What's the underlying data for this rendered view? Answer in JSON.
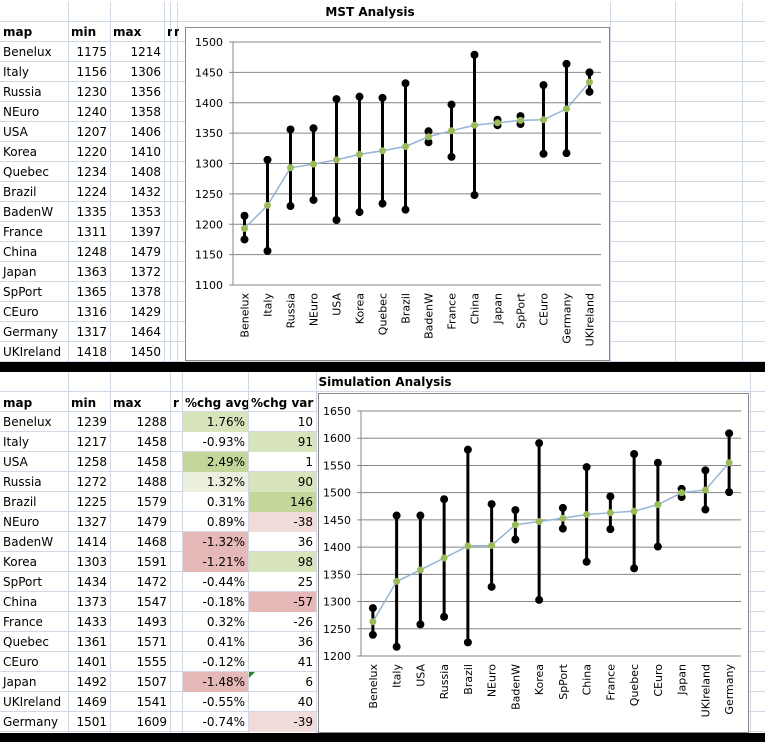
{
  "mst": {
    "title": "MST Analysis",
    "headers": [
      "map",
      "min",
      "max",
      "r",
      "m"
    ],
    "rows": [
      {
        "map": "Benelux",
        "min": 1175,
        "max": 1214,
        "avg": 1193
      },
      {
        "map": "Italy",
        "min": 1156,
        "max": 1306,
        "avg": 1231
      },
      {
        "map": "Russia",
        "min": 1230,
        "max": 1356,
        "avg": 1293
      },
      {
        "map": "NEuro",
        "min": 1240,
        "max": 1358,
        "avg": 1299
      },
      {
        "map": "USA",
        "min": 1207,
        "max": 1406,
        "avg": 1306
      },
      {
        "map": "Korea",
        "min": 1220,
        "max": 1410,
        "avg": 1315
      },
      {
        "map": "Quebec",
        "min": 1234,
        "max": 1408,
        "avg": 1321
      },
      {
        "map": "Brazil",
        "min": 1224,
        "max": 1432,
        "avg": 1328
      },
      {
        "map": "BadenW",
        "min": 1335,
        "max": 1353,
        "avg": 1344
      },
      {
        "map": "France",
        "min": 1311,
        "max": 1397,
        "avg": 1354
      },
      {
        "map": "China",
        "min": 1248,
        "max": 1479,
        "avg": 1363
      },
      {
        "map": "Japan",
        "min": 1363,
        "max": 1372,
        "avg": 1367
      },
      {
        "map": "SpPort",
        "min": 1365,
        "max": 1378,
        "avg": 1371
      },
      {
        "map": "CEuro",
        "min": 1316,
        "max": 1429,
        "avg": 1372
      },
      {
        "map": "Germany",
        "min": 1317,
        "max": 1464,
        "avg": 1390
      },
      {
        "map": "UKIreland",
        "min": 1418,
        "max": 1450,
        "avg": 1434
      }
    ]
  },
  "sim": {
    "title": "Simulation Analysis",
    "headers": [
      "map",
      "min",
      "max",
      "r",
      "%chg avg",
      "%chg var"
    ],
    "rows": [
      {
        "map": "Benelux",
        "min": 1239,
        "max": 1288,
        "chg_avg": "1.76%",
        "chg_var": "10",
        "avg_fill": "#d8e4bc",
        "var_fill": "",
        "avg": 1263
      },
      {
        "map": "Italy",
        "min": 1217,
        "max": 1458,
        "chg_avg": "-0.93%",
        "chg_var": "91",
        "avg_fill": "",
        "var_fill": "#d8e4bc",
        "avg": 1337
      },
      {
        "map": "USA",
        "min": 1258,
        "max": 1458,
        "chg_avg": "2.49%",
        "chg_var": "1",
        "avg_fill": "#c4d79b",
        "var_fill": "",
        "avg": 1358
      },
      {
        "map": "Russia",
        "min": 1272,
        "max": 1488,
        "chg_avg": "1.32%",
        "chg_var": "90",
        "avg_fill": "#ebf1de",
        "var_fill": "#d8e4bc",
        "avg": 1380
      },
      {
        "map": "Brazil",
        "min": 1225,
        "max": 1579,
        "chg_avg": "0.31%",
        "chg_var": "146",
        "avg_fill": "",
        "var_fill": "#c4d79b",
        "avg": 1402
      },
      {
        "map": "NEuro",
        "min": 1327,
        "max": 1479,
        "chg_avg": "0.89%",
        "chg_var": "-38",
        "avg_fill": "",
        "var_fill": "#f2dcdb",
        "avg": 1403
      },
      {
        "map": "BadenW",
        "min": 1414,
        "max": 1468,
        "chg_avg": "-1.32%",
        "chg_var": "36",
        "avg_fill": "#e6b8b7",
        "var_fill": "",
        "avg": 1441
      },
      {
        "map": "Korea",
        "min": 1303,
        "max": 1591,
        "chg_avg": "-1.21%",
        "chg_var": "98",
        "avg_fill": "#e6b8b7",
        "var_fill": "#d8e4bc",
        "avg": 1447
      },
      {
        "map": "SpPort",
        "min": 1434,
        "max": 1472,
        "chg_avg": "-0.44%",
        "chg_var": "25",
        "avg_fill": "",
        "var_fill": "",
        "avg": 1453
      },
      {
        "map": "China",
        "min": 1373,
        "max": 1547,
        "chg_avg": "-0.18%",
        "chg_var": "-57",
        "avg_fill": "",
        "var_fill": "#e6b8b7",
        "avg": 1460
      },
      {
        "map": "France",
        "min": 1433,
        "max": 1493,
        "chg_avg": "0.32%",
        "chg_var": "-26",
        "avg_fill": "",
        "var_fill": "",
        "avg": 1463
      },
      {
        "map": "Quebec",
        "min": 1361,
        "max": 1571,
        "chg_avg": "0.41%",
        "chg_var": "36",
        "avg_fill": "",
        "var_fill": "",
        "avg": 1466
      },
      {
        "map": "CEuro",
        "min": 1401,
        "max": 1555,
        "chg_avg": "-0.12%",
        "chg_var": "41",
        "avg_fill": "",
        "var_fill": "",
        "avg": 1478
      },
      {
        "map": "Japan",
        "min": 1492,
        "max": 1507,
        "chg_avg": "-1.48%",
        "chg_var": "6",
        "avg_fill": "#e6b8b7",
        "var_fill": "",
        "avg": 1500
      },
      {
        "map": "UKIreland",
        "min": 1469,
        "max": 1541,
        "chg_avg": "-0.55%",
        "chg_var": "40",
        "avg_fill": "",
        "var_fill": "",
        "avg": 1505
      },
      {
        "map": "Germany",
        "min": 1501,
        "max": 1609,
        "chg_avg": "-0.74%",
        "chg_var": "-39",
        "avg_fill": "",
        "var_fill": "#f2dcdb",
        "avg": 1555
      }
    ]
  },
  "chart_data": [
    {
      "type": "line",
      "title": "MST Analysis",
      "ylim": [
        1100,
        1500
      ],
      "yticks": [
        1100,
        1150,
        1200,
        1250,
        1300,
        1350,
        1400,
        1450,
        1500
      ],
      "source": "mst",
      "series": [
        "min-max range",
        "avg"
      ],
      "grid": true
    },
    {
      "type": "line",
      "title": "Simulation Analysis",
      "ylim": [
        1200,
        1650
      ],
      "yticks": [
        1200,
        1250,
        1300,
        1350,
        1400,
        1450,
        1500,
        1550,
        1600,
        1650
      ],
      "source": "sim",
      "series": [
        "min-max range",
        "avg"
      ],
      "grid": true
    }
  ],
  "colors": {
    "avg_line": "#95b3d7",
    "avg_marker": "#9bbb59",
    "range_bar": "#000000",
    "gridline": "#868686"
  }
}
